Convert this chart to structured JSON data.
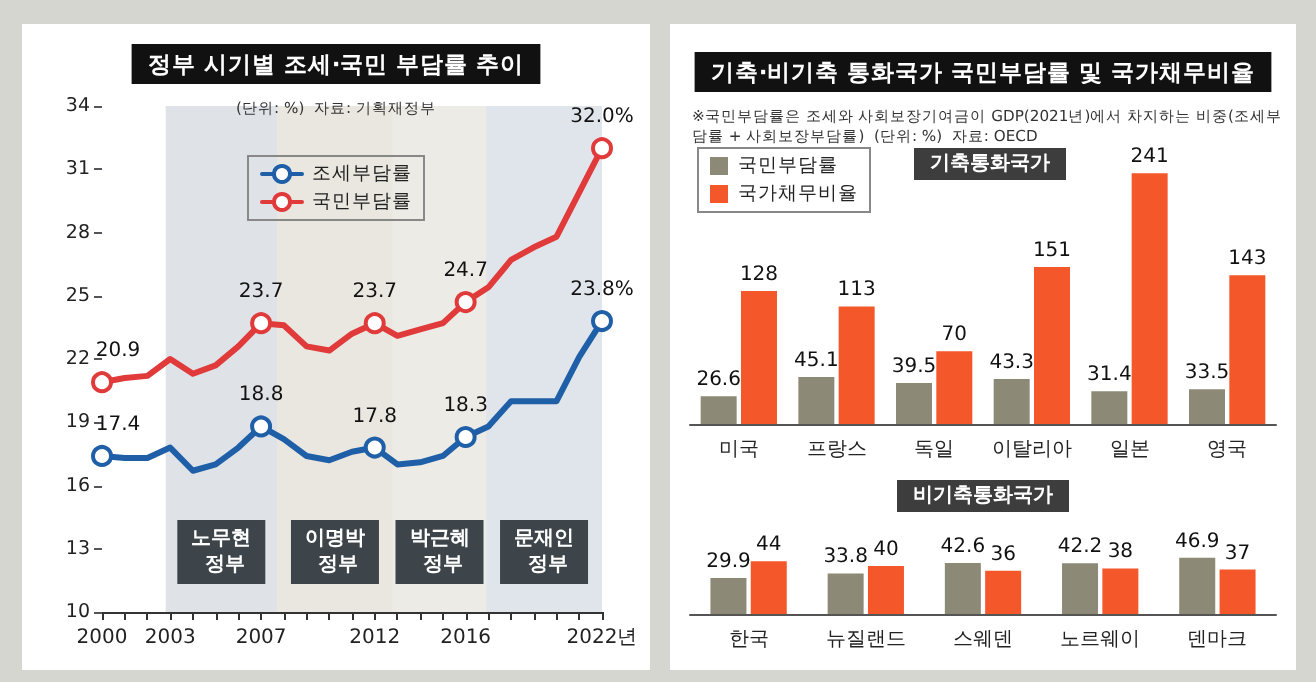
{
  "chart_data": [
    {
      "type": "line",
      "title": "정부 시기별 조세·국민 부담률 추이",
      "subtitle": "(단위: %)  자료: 기획재정부",
      "x": [
        2000,
        2001,
        2002,
        2003,
        2004,
        2005,
        2006,
        2007,
        2008,
        2009,
        2010,
        2011,
        2012,
        2013,
        2014,
        2015,
        2016,
        2017,
        2018,
        2019,
        2020,
        2021,
        2022
      ],
      "series": [
        {
          "name": "조세부담률",
          "color": "#1f5fa8",
          "values": [
            17.4,
            17.3,
            17.3,
            17.8,
            16.7,
            17.0,
            17.8,
            18.8,
            18.2,
            17.4,
            17.2,
            17.6,
            17.8,
            17.0,
            17.1,
            17.4,
            18.3,
            18.8,
            20.0,
            20.0,
            20.0,
            22.1,
            23.8
          ],
          "value_labels": [
            "17.4",
            null,
            null,
            null,
            null,
            null,
            null,
            "18.8",
            null,
            null,
            null,
            null,
            "17.8",
            null,
            null,
            null,
            "18.3",
            null,
            null,
            null,
            null,
            null,
            "23.8%"
          ]
        },
        {
          "name": "국민부담률",
          "color": "#e03a3a",
          "values": [
            20.9,
            21.1,
            21.2,
            22.0,
            21.3,
            21.7,
            22.6,
            23.7,
            23.6,
            22.6,
            22.4,
            23.2,
            23.7,
            23.1,
            23.4,
            23.7,
            24.7,
            25.4,
            26.7,
            27.3,
            27.8,
            29.9,
            32.0
          ],
          "value_labels": [
            "20.9",
            null,
            null,
            null,
            null,
            null,
            null,
            "23.7",
            null,
            null,
            null,
            null,
            "23.7",
            null,
            null,
            null,
            "24.7",
            null,
            null,
            null,
            null,
            null,
            "32.0%"
          ]
        }
      ],
      "xlim": [
        2000,
        2022
      ],
      "xticks": [
        2000,
        {
          "value": 2001,
          "label": null
        },
        {
          "value": 2002,
          "label": null
        },
        2003,
        {
          "value": 2004,
          "label": null
        },
        {
          "value": 2005,
          "label": null
        },
        {
          "value": 2006,
          "label": null
        },
        2007,
        {
          "value": 2008,
          "label": null
        },
        {
          "value": 2009,
          "label": null
        },
        {
          "value": 2010,
          "label": null
        },
        {
          "value": 2011,
          "label": null
        },
        2012,
        {
          "value": 2013,
          "label": null
        },
        {
          "value": 2014,
          "label": null
        },
        {
          "value": 2015,
          "label": null
        },
        2016,
        {
          "value": 2017,
          "label": null
        },
        {
          "value": 2018,
          "label": null
        },
        {
          "value": 2019,
          "label": null
        },
        {
          "value": 2020,
          "label": null
        },
        {
          "value": 2021,
          "label": null
        },
        {
          "value": 2022,
          "label": "2022년"
        }
      ],
      "ylim": [
        10,
        34
      ],
      "yticks": [
        10,
        13,
        16,
        19,
        22,
        25,
        28,
        31,
        34
      ],
      "bands": [
        {
          "axis": "x",
          "from": 2002.8,
          "to": 2007.7,
          "label": "노무현 정부",
          "color": "#dfe3e8"
        },
        {
          "axis": "x",
          "from": 2007.7,
          "to": 2012.8,
          "label": "이명박 정부",
          "color": "#e9e7df"
        },
        {
          "axis": "x",
          "from": 2012.8,
          "to": 2016.9,
          "label": "박근혜 정부",
          "color": "#ecebe5"
        },
        {
          "axis": "x",
          "from": 2016.9,
          "to": 2022,
          "label": "문재인 정부",
          "color": "#e0e5eb"
        }
      ],
      "grid": false,
      "legend": "top"
    },
    {
      "type": "bar",
      "title": "기축·비기축 통화국가 국민부담률 및 국가채무비율",
      "subtitle": "※국민부담률은 조세와 사회보장기여금이 GDP(2021년)에서 차지하는 비중(조세부담률 + 사회보장부담률)  (단위: %)  자료: OECD",
      "annotations": [
        "기축통화국가"
      ],
      "categories": [
        "미국",
        "프랑스",
        "독일",
        "이탈리아",
        "일본",
        "영국"
      ],
      "series": [
        {
          "name": "국민부담률",
          "color": "#8c8a76",
          "values": [
            26.6,
            45.1,
            39.5,
            43.3,
            31.4,
            33.5
          ]
        },
        {
          "name": "국가채무비율",
          "color": "#f4572a",
          "values": [
            128,
            113,
            70,
            151,
            241,
            143
          ]
        }
      ],
      "data_labels": true,
      "legend": "top left"
    },
    {
      "type": "bar",
      "title": "비기축통화국가",
      "categories": [
        "한국",
        "뉴질랜드",
        "스웨덴",
        "노르웨이",
        "덴마크"
      ],
      "series": [
        {
          "color": "#8c8a76",
          "values": [
            29.9,
            33.8,
            42.6,
            42.2,
            46.9
          ]
        },
        {
          "color": "#f4572a",
          "values": [
            44,
            40,
            36,
            38,
            37
          ]
        }
      ],
      "data_labels": true
    }
  ]
}
